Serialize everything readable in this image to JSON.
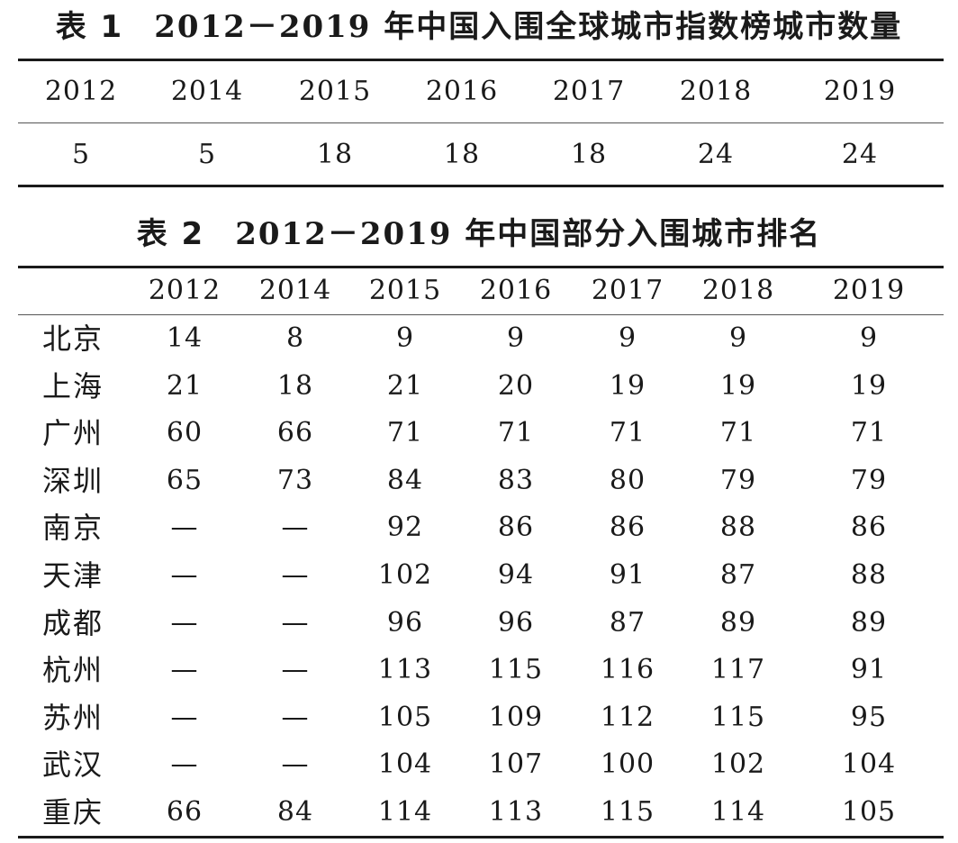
{
  "table1": {
    "label": "表 1",
    "title_year": "2012－2019",
    "title_text": "年中国入围全球城市指数榜城市数量",
    "years": [
      "2012",
      "2014",
      "2015",
      "2016",
      "2017",
      "2018",
      "2019"
    ],
    "counts": [
      "5",
      "5",
      "18",
      "18",
      "18",
      "24",
      "24"
    ]
  },
  "table2": {
    "label": "表 2",
    "title_year": "2012－2019",
    "title_text": "年中国部分入围城市排名",
    "years": [
      "2012",
      "2014",
      "2015",
      "2016",
      "2017",
      "2018",
      "2019"
    ],
    "rows": [
      {
        "city": "北京",
        "ranks": [
          "14",
          "8",
          "9",
          "9",
          "9",
          "9",
          "9"
        ]
      },
      {
        "city": "上海",
        "ranks": [
          "21",
          "18",
          "21",
          "20",
          "19",
          "19",
          "19"
        ]
      },
      {
        "city": "广州",
        "ranks": [
          "60",
          "66",
          "71",
          "71",
          "71",
          "71",
          "71"
        ]
      },
      {
        "city": "深圳",
        "ranks": [
          "65",
          "73",
          "84",
          "83",
          "80",
          "79",
          "79"
        ]
      },
      {
        "city": "南京",
        "ranks": [
          "—",
          "—",
          "92",
          "86",
          "86",
          "88",
          "86"
        ]
      },
      {
        "city": "天津",
        "ranks": [
          "—",
          "—",
          "102",
          "94",
          "91",
          "87",
          "88"
        ]
      },
      {
        "city": "成都",
        "ranks": [
          "—",
          "—",
          "96",
          "96",
          "87",
          "89",
          "89"
        ]
      },
      {
        "city": "杭州",
        "ranks": [
          "—",
          "—",
          "113",
          "115",
          "116",
          "117",
          "91"
        ]
      },
      {
        "city": "苏州",
        "ranks": [
          "—",
          "—",
          "105",
          "109",
          "112",
          "115",
          "95"
        ]
      },
      {
        "city": "武汉",
        "ranks": [
          "—",
          "—",
          "104",
          "107",
          "100",
          "102",
          "104"
        ]
      },
      {
        "city": "重庆",
        "ranks": [
          "66",
          "84",
          "114",
          "113",
          "115",
          "114",
          "105"
        ]
      }
    ]
  }
}
